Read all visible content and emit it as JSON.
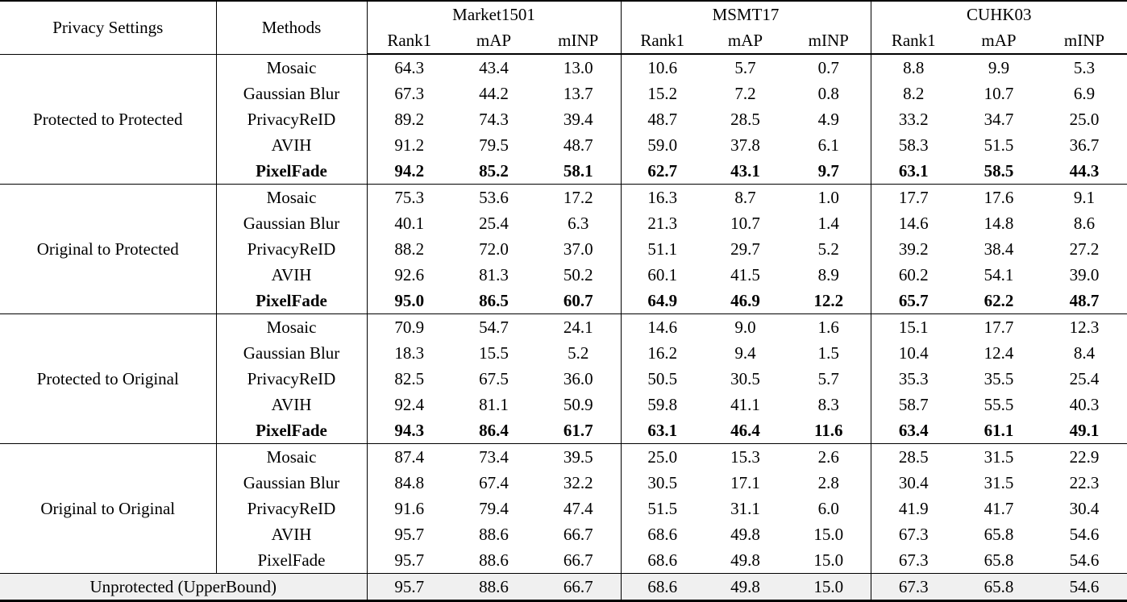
{
  "table": {
    "col_headers": {
      "privacy_settings": "Privacy Settings",
      "methods": "Methods"
    },
    "datasets": [
      "Market1501",
      "MSMT17",
      "CUHK03"
    ],
    "metrics": [
      "Rank1",
      "mAP",
      "mINP"
    ],
    "groups": [
      {
        "setting": "Protected to Protected",
        "rows": [
          {
            "method": "Mosaic",
            "bold": false,
            "values": [
              "64.3",
              "43.4",
              "13.0",
              "10.6",
              "5.7",
              "0.7",
              "8.8",
              "9.9",
              "5.3"
            ]
          },
          {
            "method": "Gaussian Blur",
            "bold": false,
            "values": [
              "67.3",
              "44.2",
              "13.7",
              "15.2",
              "7.2",
              "0.8",
              "8.2",
              "10.7",
              "6.9"
            ]
          },
          {
            "method": "PrivacyReID",
            "bold": false,
            "values": [
              "89.2",
              "74.3",
              "39.4",
              "48.7",
              "28.5",
              "4.9",
              "33.2",
              "34.7",
              "25.0"
            ]
          },
          {
            "method": "AVIH",
            "bold": false,
            "values": [
              "91.2",
              "79.5",
              "48.7",
              "59.0",
              "37.8",
              "6.1",
              "58.3",
              "51.5",
              "36.7"
            ]
          },
          {
            "method": "PixelFade",
            "bold": true,
            "values": [
              "94.2",
              "85.2",
              "58.1",
              "62.7",
              "43.1",
              "9.7",
              "63.1",
              "58.5",
              "44.3"
            ]
          }
        ]
      },
      {
        "setting": "Original to Protected",
        "rows": [
          {
            "method": "Mosaic",
            "bold": false,
            "values": [
              "75.3",
              "53.6",
              "17.2",
              "16.3",
              "8.7",
              "1.0",
              "17.7",
              "17.6",
              "9.1"
            ]
          },
          {
            "method": "Gaussian Blur",
            "bold": false,
            "values": [
              "40.1",
              "25.4",
              "6.3",
              "21.3",
              "10.7",
              "1.4",
              "14.6",
              "14.8",
              "8.6"
            ]
          },
          {
            "method": "PrivacyReID",
            "bold": false,
            "values": [
              "88.2",
              "72.0",
              "37.0",
              "51.1",
              "29.7",
              "5.2",
              "39.2",
              "38.4",
              "27.2"
            ]
          },
          {
            "method": "AVIH",
            "bold": false,
            "values": [
              "92.6",
              "81.3",
              "50.2",
              "60.1",
              "41.5",
              "8.9",
              "60.2",
              "54.1",
              "39.0"
            ]
          },
          {
            "method": "PixelFade",
            "bold": true,
            "values": [
              "95.0",
              "86.5",
              "60.7",
              "64.9",
              "46.9",
              "12.2",
              "65.7",
              "62.2",
              "48.7"
            ]
          }
        ]
      },
      {
        "setting": "Protected to Original",
        "rows": [
          {
            "method": "Mosaic",
            "bold": false,
            "values": [
              "70.9",
              "54.7",
              "24.1",
              "14.6",
              "9.0",
              "1.6",
              "15.1",
              "17.7",
              "12.3"
            ]
          },
          {
            "method": "Gaussian Blur",
            "bold": false,
            "values": [
              "18.3",
              "15.5",
              "5.2",
              "16.2",
              "9.4",
              "1.5",
              "10.4",
              "12.4",
              "8.4"
            ]
          },
          {
            "method": "PrivacyReID",
            "bold": false,
            "values": [
              "82.5",
              "67.5",
              "36.0",
              "50.5",
              "30.5",
              "5.7",
              "35.3",
              "35.5",
              "25.4"
            ]
          },
          {
            "method": "AVIH",
            "bold": false,
            "values": [
              "92.4",
              "81.1",
              "50.9",
              "59.8",
              "41.1",
              "8.3",
              "58.7",
              "55.5",
              "40.3"
            ]
          },
          {
            "method": "PixelFade",
            "bold": true,
            "values": [
              "94.3",
              "86.4",
              "61.7",
              "63.1",
              "46.4",
              "11.6",
              "63.4",
              "61.1",
              "49.1"
            ]
          }
        ]
      },
      {
        "setting": "Original to Original",
        "rows": [
          {
            "method": "Mosaic",
            "bold": false,
            "values": [
              "87.4",
              "73.4",
              "39.5",
              "25.0",
              "15.3",
              "2.6",
              "28.5",
              "31.5",
              "22.9"
            ]
          },
          {
            "method": "Gaussian Blur",
            "bold": false,
            "values": [
              "84.8",
              "67.4",
              "32.2",
              "30.5",
              "17.1",
              "2.8",
              "30.4",
              "31.5",
              "22.3"
            ]
          },
          {
            "method": "PrivacyReID",
            "bold": false,
            "values": [
              "91.6",
              "79.4",
              "47.4",
              "51.5",
              "31.1",
              "6.0",
              "41.9",
              "41.7",
              "30.4"
            ]
          },
          {
            "method": "AVIH",
            "bold": false,
            "values": [
              "95.7",
              "88.6",
              "66.7",
              "68.6",
              "49.8",
              "15.0",
              "67.3",
              "65.8",
              "54.6"
            ]
          },
          {
            "method": "PixelFade",
            "bold": false,
            "values": [
              "95.7",
              "88.6",
              "66.7",
              "68.6",
              "49.8",
              "15.0",
              "67.3",
              "65.8",
              "54.6"
            ]
          }
        ]
      }
    ],
    "upper_bound": {
      "label": "Unprotected (UpperBound)",
      "values": [
        "95.7",
        "88.6",
        "66.7",
        "68.6",
        "49.8",
        "15.0",
        "67.3",
        "65.8",
        "54.6"
      ]
    },
    "colors": {
      "upper_bound_bg": "#f0f0f0",
      "border": "#000000"
    }
  }
}
